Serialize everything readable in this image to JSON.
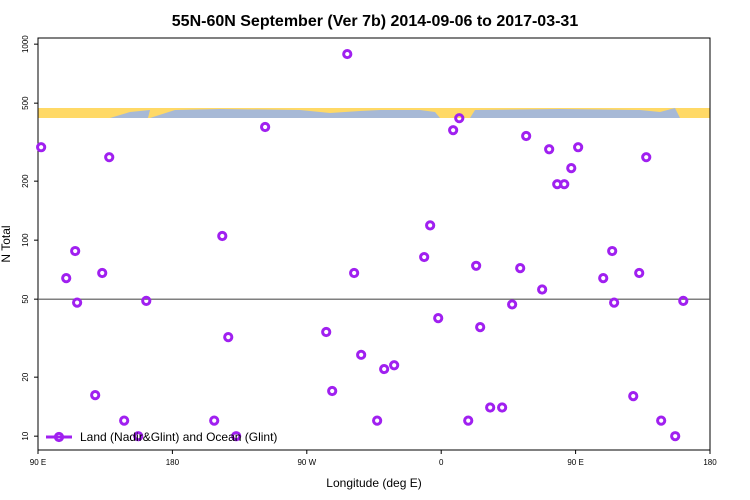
{
  "chart_data": {
    "type": "scatter",
    "title": "55N-60N September (Ver 7b)   2014-09-06 to 2017-03-31",
    "x_label": "Longitude (deg E)",
    "y_label": "N Total",
    "xlim": [
      -270,
      180
    ],
    "xticks": [
      {
        "value": -270,
        "label": "90 E"
      },
      {
        "value": -180,
        "label": "180"
      },
      {
        "value": -90,
        "label": "90 W"
      },
      0,
      {
        "value": 90,
        "label": "90 E"
      },
      180
    ],
    "ylim": [
      8.5,
      1075
    ],
    "log_y": true,
    "yticks": [
      10,
      20,
      50,
      100,
      200,
      500,
      1000
    ],
    "hline": 50,
    "legend": "lower left",
    "series": [
      {
        "name": "Land (Nadir&Glint) and Ocean (Glint)",
        "color": "#a020f0",
        "x": [
          -267.9,
          -251.1,
          -245.1,
          -243.8,
          -231.7,
          -227.0,
          -222.3,
          -212.3,
          -202.9,
          -197.5,
          -152.0,
          -146.6,
          -142.6,
          -137.3,
          -117.9,
          -77.0,
          -73.0,
          -62.9,
          -58.3,
          -53.6,
          -42.9,
          -38.2,
          -31.5,
          -11.4,
          -7.4,
          -2.0,
          8.0,
          12.1,
          18.1,
          23.4,
          26.1,
          32.8,
          40.8,
          47.5,
          52.9,
          56.9,
          67.6,
          72.3,
          77.7,
          82.4,
          87.1,
          91.7,
          108.5,
          114.5,
          115.8,
          128.6,
          132.6,
          137.3,
          147.3,
          156.7,
          162.1
        ],
        "values": [
          298,
          64,
          88,
          48,
          16.2,
          68,
          265,
          12,
          10,
          49,
          12,
          105,
          32,
          10,
          378,
          34,
          17,
          890,
          68,
          26,
          12,
          22,
          23,
          82,
          119,
          40,
          364,
          419,
          12,
          74,
          36,
          14,
          14,
          47,
          72,
          340,
          56,
          291,
          193,
          193,
          233,
          298,
          64,
          88,
          48,
          16,
          68,
          265,
          12,
          10,
          49
        ]
      }
    ]
  }
}
